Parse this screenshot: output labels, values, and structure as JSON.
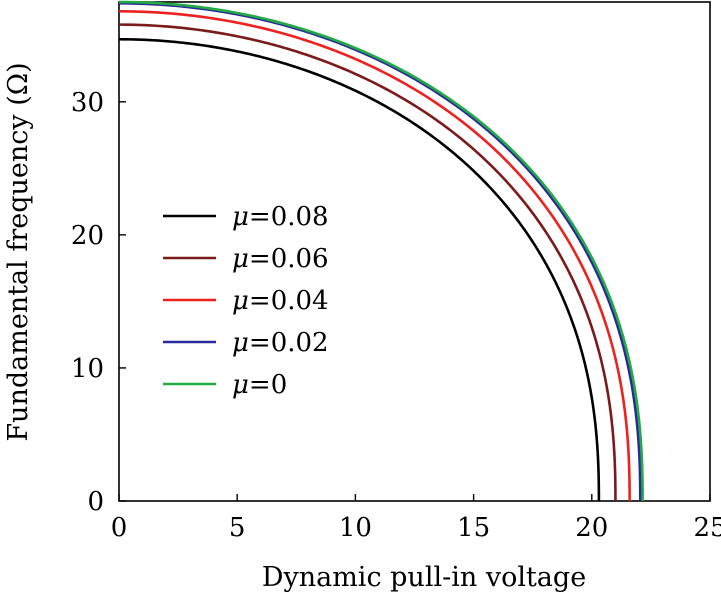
{
  "chart_data": {
    "type": "line",
    "xlabel": "Dynamic pull-in voltage",
    "ylabel": "Fundamental frequency (Ω)",
    "xlim": [
      0,
      25
    ],
    "ylim": [
      0,
      37.5
    ],
    "xticks": [
      "0",
      "5",
      "10",
      "15",
      "20",
      "25"
    ],
    "yticks": [
      "0",
      "10",
      "20",
      "30"
    ],
    "grid": false,
    "legend_position": "center-left",
    "series": [
      {
        "name": "μ=0.08",
        "symbol": "μ",
        "suffix": "=0.08",
        "color": "#000000",
        "x0": 20.3,
        "y0": 34.7
      },
      {
        "name": "μ=0.06",
        "symbol": "μ",
        "suffix": "=0.06",
        "color": "#7a1a1a",
        "x0": 21.0,
        "y0": 35.8
      },
      {
        "name": "μ=0.04",
        "symbol": "μ",
        "suffix": "=0.04",
        "color": "#ee2020",
        "x0": 21.6,
        "y0": 36.8
      },
      {
        "name": "μ=0.02",
        "symbol": "μ",
        "suffix": "=0.02",
        "color": "#2a2a9a",
        "x0": 22.05,
        "y0": 37.4
      },
      {
        "name": "μ=0",
        "symbol": "μ",
        "suffix": "=0",
        "color": "#22aa44",
        "x0": 22.15,
        "y0": 37.5
      }
    ]
  }
}
